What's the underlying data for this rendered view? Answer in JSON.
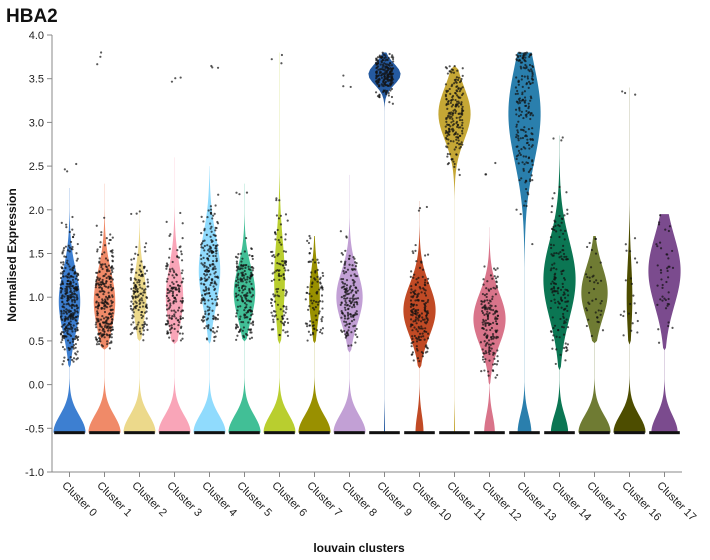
{
  "chart_data": {
    "type": "violin",
    "title": "HBA2",
    "xlabel": "louvain clusters",
    "ylabel": "Normalised Expression",
    "ylim": [
      -1.0,
      4.0
    ],
    "yticks": [
      "4.0",
      "3.5",
      "3.0",
      "2.5",
      "2.0",
      "1.5",
      "1.0",
      "0.5",
      "0.0",
      "-0.5",
      "-1.0"
    ],
    "grid": false,
    "categories": [
      "Cluster 0",
      "Cluster 1",
      "Cluster 2",
      "Cluster 3",
      "Cluster 4",
      "Cluster 5",
      "Cluster 6",
      "Cluster 7",
      "Cluster 8",
      "Cluster 9",
      "Cluster 10",
      "Cluster 11",
      "Cluster 12",
      "Cluster 13",
      "Cluster 14",
      "Cluster 15",
      "Cluster 16",
      "Cluster 17"
    ],
    "violins": [
      {
        "color": "#3d7fd1",
        "zero_frac": 0.6,
        "hi_min": 0.2,
        "hi_max": 2.25,
        "hi_center": 0.95,
        "hi_spread": 0.35,
        "dots_max": 2.55,
        "n_dots": 330
      },
      {
        "color": "#f08a68",
        "zero_frac": 0.6,
        "hi_min": 0.4,
        "hi_max": 2.3,
        "hi_center": 0.95,
        "hi_spread": 0.35,
        "dots_max": 3.8,
        "n_dots": 280
      },
      {
        "color": "#ecd98b",
        "zero_frac": 0.7,
        "hi_min": 0.5,
        "hi_max": 2.0,
        "hi_center": 1.0,
        "hi_spread": 0.3,
        "dots_max": 2.0,
        "n_dots": 150
      },
      {
        "color": "#f9a5b8",
        "zero_frac": 0.65,
        "hi_min": 0.5,
        "hi_max": 2.6,
        "hi_center": 1.0,
        "hi_spread": 0.35,
        "dots_max": 3.55,
        "n_dots": 150
      },
      {
        "color": "#90dbfd",
        "zero_frac": 0.6,
        "hi_min": 0.5,
        "hi_max": 2.5,
        "hi_center": 1.3,
        "hi_spread": 0.4,
        "dots_max": 3.75,
        "n_dots": 220
      },
      {
        "color": "#41bf96",
        "zero_frac": 0.6,
        "hi_min": 0.5,
        "hi_max": 2.3,
        "hi_center": 1.05,
        "hi_spread": 0.3,
        "dots_max": 2.3,
        "n_dots": 190
      },
      {
        "color": "#b9ce2f",
        "zero_frac": 0.75,
        "hi_min": 0.5,
        "hi_max": 3.8,
        "hi_center": 1.2,
        "hi_spread": 0.45,
        "dots_max": 3.8,
        "n_dots": 120
      },
      {
        "color": "#999000",
        "zero_frac": 0.75,
        "hi_min": 0.5,
        "hi_max": 1.7,
        "hi_center": 1.0,
        "hi_spread": 0.3,
        "dots_max": 1.7,
        "n_dots": 90
      },
      {
        "color": "#c2a0d5",
        "zero_frac": 0.55,
        "hi_min": 0.4,
        "hi_max": 2.4,
        "hi_center": 1.0,
        "hi_spread": 0.3,
        "dots_max": 3.55,
        "n_dots": 170
      },
      {
        "color": "#255aa0",
        "zero_frac": 0.03,
        "hi_min": 2.5,
        "hi_max": 3.8,
        "hi_center": 3.55,
        "hi_spread": 0.12,
        "dots_max": 3.8,
        "n_dots": 200
      },
      {
        "color": "#c14a25",
        "zero_frac": 0.2,
        "hi_min": 0.2,
        "hi_max": 2.1,
        "hi_center": 0.85,
        "hi_spread": 0.3,
        "dots_max": 2.1,
        "n_dots": 180
      },
      {
        "color": "#c5a735",
        "zero_frac": 0.03,
        "hi_min": 1.7,
        "hi_max": 3.65,
        "hi_center": 3.1,
        "hi_spread": 0.3,
        "dots_max": 3.65,
        "n_dots": 200
      },
      {
        "color": "#d9748a",
        "zero_frac": 0.25,
        "hi_min": 0.0,
        "hi_max": 1.8,
        "hi_center": 0.75,
        "hi_spread": 0.3,
        "dots_max": 2.55,
        "n_dots": 170
      },
      {
        "color": "#2a7fad",
        "zero_frac": 0.3,
        "hi_min": 0.3,
        "hi_max": 3.8,
        "hi_center": 3.1,
        "hi_spread": 0.55,
        "dots_max": 3.8,
        "n_dots": 200
      },
      {
        "color": "#0b7653",
        "zero_frac": 0.35,
        "hi_min": 0.2,
        "hi_max": 2.85,
        "hi_center": 1.2,
        "hi_spread": 0.45,
        "dots_max": 2.85,
        "n_dots": 160
      },
      {
        "color": "#6f7b33",
        "zero_frac": 0.55,
        "hi_min": 0.5,
        "hi_max": 1.7,
        "hi_center": 1.05,
        "hi_spread": 0.3,
        "dots_max": 1.7,
        "n_dots": 40
      },
      {
        "color": "#4d4d00",
        "zero_frac": 0.85,
        "hi_min": 0.5,
        "hi_max": 3.4,
        "hi_center": 1.0,
        "hi_spread": 0.4,
        "dots_max": 3.4,
        "n_dots": 25
      },
      {
        "color": "#7b4b8e",
        "zero_frac": 0.45,
        "hi_min": 0.4,
        "hi_max": 1.95,
        "hi_center": 1.3,
        "hi_spread": 0.4,
        "dots_max": 1.95,
        "n_dots": 45
      }
    ]
  }
}
